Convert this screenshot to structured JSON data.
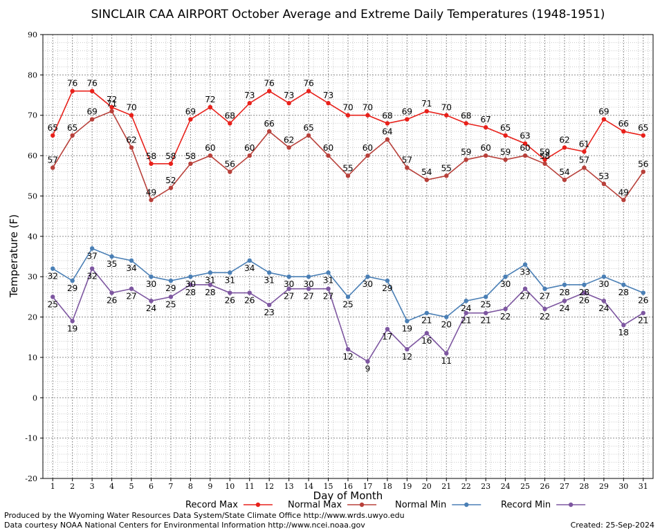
{
  "title": "SINCLAIR CAA AIRPORT October Average and Extreme Daily Temperatures (1948-1951)",
  "footer": {
    "produced_by": "Produced by the Wyoming Water Resources Data System/State Climate Office http://www.wrds.uwyo.edu",
    "courtesy": "Data courtesy NOAA National Centers for Environmental Information http://www.ncei.noaa.gov",
    "created": "Created:  25-Sep-2024"
  },
  "chart_data": {
    "type": "line",
    "title": "SINCLAIR CAA AIRPORT October Average and Extreme Daily Temperatures (1948-1951)",
    "xlabel": "Day of Month",
    "ylabel": "Temperature (F)",
    "x": [
      1,
      2,
      3,
      4,
      5,
      6,
      7,
      8,
      9,
      10,
      11,
      12,
      13,
      14,
      15,
      16,
      17,
      18,
      19,
      20,
      21,
      22,
      23,
      24,
      25,
      26,
      27,
      28,
      29,
      30,
      31
    ],
    "xlim": [
      0.5,
      31.5
    ],
    "ylim": [
      -20,
      90
    ],
    "yticks": [
      -20,
      -10,
      0,
      10,
      20,
      30,
      40,
      50,
      60,
      70,
      80,
      90
    ],
    "grid": true,
    "legend_position": "bottom",
    "series": [
      {
        "name": "Record Max",
        "color": "#e8201a",
        "values": [
          65,
          76,
          76,
          72,
          70,
          58,
          58,
          69,
          72,
          68,
          73,
          76,
          73,
          76,
          73,
          70,
          70,
          68,
          69,
          71,
          70,
          68,
          67,
          65,
          63,
          59,
          62,
          61,
          69,
          66,
          65
        ]
      },
      {
        "name": "Normal Max",
        "color": "#b8403a",
        "values": [
          57,
          65,
          69,
          71,
          62,
          49,
          52,
          58,
          60,
          56,
          60,
          66,
          62,
          65,
          60,
          55,
          60,
          64,
          57,
          54,
          55,
          59,
          60,
          59,
          60,
          58,
          54,
          57,
          53,
          49,
          56
        ]
      },
      {
        "name": "Normal Min",
        "color": "#4a7fb5",
        "values": [
          32,
          29,
          37,
          35,
          34,
          30,
          29,
          30,
          31,
          31,
          34,
          31,
          30,
          30,
          31,
          25,
          30,
          29,
          19,
          21,
          20,
          24,
          25,
          30,
          33,
          27,
          28,
          28,
          30,
          28,
          26
        ]
      },
      {
        "name": "Record Min",
        "color": "#7d56a0",
        "values": [
          25,
          19,
          32,
          26,
          27,
          24,
          25,
          28,
          28,
          26,
          26,
          23,
          27,
          27,
          27,
          12,
          9,
          17,
          12,
          16,
          11,
          21,
          21,
          22,
          27,
          22,
          24,
          26,
          24,
          18,
          21
        ]
      }
    ]
  }
}
